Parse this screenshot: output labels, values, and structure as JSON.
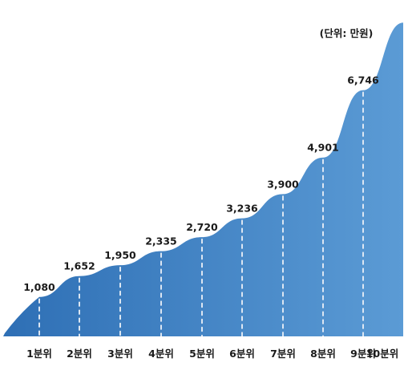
{
  "chart_data": {
    "type": "area",
    "unit_note": "(단위: 만원)",
    "categories": [
      "1분위",
      "2분위",
      "3분위",
      "4분위",
      "5분위",
      "6분위",
      "7분위",
      "8분위",
      "9분위",
      "10분위"
    ],
    "values": [
      1080,
      1652,
      1950,
      2335,
      2720,
      3236,
      3900,
      4901,
      6746,
      8600
    ],
    "value_labels": [
      "1,080",
      "1,652",
      "1,950",
      "2,335",
      "2,720",
      "3,236",
      "3,900",
      "4,901",
      "6,746",
      ""
    ],
    "ylim": [
      0,
      9000
    ],
    "grid": false,
    "legend": "none",
    "colors": {
      "fill_top": "#5b9bd5",
      "fill_bottom": "#2e6fb5",
      "drop_line": "#dce6f2",
      "text": "#1a1a1a"
    }
  }
}
